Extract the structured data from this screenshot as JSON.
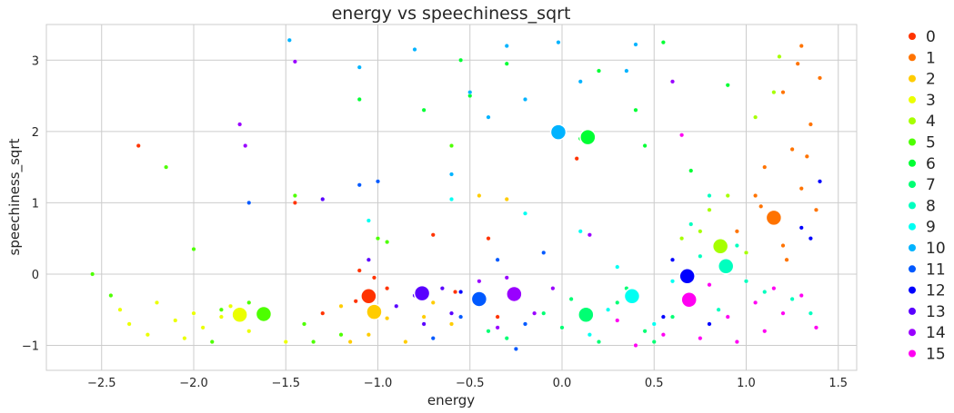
{
  "chart_data": {
    "type": "scatter",
    "title": "energy vs speechiness_sqrt",
    "xlabel": "energy",
    "ylabel": "speechiness_sqrt",
    "xlim": [
      -2.8,
      1.6
    ],
    "ylim": [
      -1.35,
      3.5
    ],
    "x_ticks": [
      -2.5,
      -2.0,
      -1.5,
      -1.0,
      -0.5,
      0.0,
      0.5,
      1.0,
      1.5
    ],
    "x_tick_labels": [
      "−2.5",
      "−2.0",
      "−1.5",
      "−1.0",
      "−0.5",
      "0.0",
      "0.5",
      "1.0",
      "1.5"
    ],
    "y_ticks": [
      -1,
      0,
      1,
      2,
      3
    ],
    "y_tick_labels": [
      "−1",
      "0",
      "1",
      "2",
      "3"
    ],
    "grid": true,
    "legend_position": "outside-right",
    "clusters": [
      {
        "name": "0",
        "color": "#ff3300",
        "center": [
          -1.05,
          -0.31
        ]
      },
      {
        "name": "1",
        "color": "#ff7300",
        "center": [
          1.15,
          0.79
        ]
      },
      {
        "name": "2",
        "color": "#ffcc00",
        "center": [
          -1.02,
          -0.53
        ]
      },
      {
        "name": "3",
        "color": "#ebff00",
        "center": [
          -1.75,
          -0.57
        ]
      },
      {
        "name": "4",
        "color": "#a6ff00",
        "center": [
          0.86,
          0.39
        ]
      },
      {
        "name": "5",
        "color": "#4dff00",
        "center": [
          -1.62,
          -0.56
        ]
      },
      {
        "name": "6",
        "color": "#00ff33",
        "center": [
          0.14,
          1.92
        ]
      },
      {
        "name": "7",
        "color": "#00ff73",
        "center": [
          0.13,
          -0.57
        ]
      },
      {
        "name": "8",
        "color": "#00ffbf",
        "center": [
          0.89,
          0.11
        ]
      },
      {
        "name": "9",
        "color": "#00fff2",
        "center": [
          0.38,
          -0.31
        ]
      },
      {
        "name": "10",
        "color": "#00b3ff",
        "center": [
          -0.02,
          1.99
        ]
      },
      {
        "name": "11",
        "color": "#0059ff",
        "center": [
          -0.45,
          -0.35
        ]
      },
      {
        "name": "12",
        "color": "#0000ff",
        "center": [
          0.68,
          -0.03
        ]
      },
      {
        "name": "13",
        "color": "#5900ff",
        "center": [
          -0.76,
          -0.27
        ]
      },
      {
        "name": "14",
        "color": "#9900ff",
        "center": [
          -0.26,
          -0.28
        ]
      },
      {
        "name": "15",
        "color": "#ff00f2",
        "center": [
          0.69,
          -0.36
        ]
      }
    ],
    "points": [
      [
        -2.3,
        1.8,
        0
      ],
      [
        -1.45,
        1.0,
        0
      ],
      [
        -1.1,
        0.05,
        0
      ],
      [
        -1.12,
        -0.38,
        0
      ],
      [
        -0.95,
        -0.2,
        0
      ],
      [
        -1.3,
        -0.55,
        0
      ],
      [
        -0.58,
        -0.25,
        0
      ],
      [
        -0.4,
        0.5,
        0
      ],
      [
        -0.7,
        0.55,
        0
      ],
      [
        0.08,
        1.62,
        0
      ],
      [
        -1.02,
        -0.05,
        0
      ],
      [
        -0.35,
        -0.6,
        0
      ],
      [
        1.3,
        1.2,
        1
      ],
      [
        1.4,
        2.75,
        1
      ],
      [
        1.2,
        2.55,
        1
      ],
      [
        1.35,
        2.1,
        1
      ],
      [
        1.05,
        1.1,
        1
      ],
      [
        0.95,
        0.6,
        1
      ],
      [
        1.25,
        1.75,
        1
      ],
      [
        1.38,
        0.9,
        1
      ],
      [
        1.1,
        1.5,
        1
      ],
      [
        1.3,
        3.2,
        1
      ],
      [
        1.0,
        0.3,
        1
      ],
      [
        1.2,
        0.4,
        1
      ],
      [
        1.28,
        2.95,
        1
      ],
      [
        1.33,
        1.65,
        1
      ],
      [
        1.08,
        0.95,
        1
      ],
      [
        1.22,
        0.2,
        1
      ],
      [
        -1.05,
        -0.85,
        2
      ],
      [
        -0.6,
        -0.7,
        2
      ],
      [
        -0.85,
        -0.95,
        2
      ],
      [
        -1.2,
        -0.45,
        2
      ],
      [
        -0.45,
        1.1,
        2
      ],
      [
        -0.3,
        1.05,
        2
      ],
      [
        -0.75,
        -0.6,
        2
      ],
      [
        -1.15,
        -0.95,
        2
      ],
      [
        -0.95,
        -0.62,
        2
      ],
      [
        -0.7,
        -0.4,
        2
      ],
      [
        -2.35,
        -0.7,
        3
      ],
      [
        -2.05,
        -0.9,
        3
      ],
      [
        -1.85,
        -0.6,
        3
      ],
      [
        -2.2,
        -0.4,
        3
      ],
      [
        -1.95,
        -0.75,
        3
      ],
      [
        -2.4,
        -0.5,
        3
      ],
      [
        -1.8,
        -0.45,
        3
      ],
      [
        -2.1,
        -0.65,
        3
      ],
      [
        -1.7,
        -0.8,
        3
      ],
      [
        -2.0,
        -0.55,
        3
      ],
      [
        -1.5,
        -0.95,
        3
      ],
      [
        -2.25,
        -0.85,
        3
      ],
      [
        0.8,
        0.9,
        4
      ],
      [
        1.15,
        2.55,
        4
      ],
      [
        1.05,
        2.2,
        4
      ],
      [
        0.65,
        0.5,
        4
      ],
      [
        1.0,
        0.3,
        4
      ],
      [
        0.9,
        1.1,
        4
      ],
      [
        0.75,
        0.6,
        4
      ],
      [
        1.18,
        3.05,
        4
      ],
      [
        -2.55,
        0.0,
        5
      ],
      [
        -1.9,
        -0.95,
        5
      ],
      [
        -1.7,
        -0.4,
        5
      ],
      [
        -1.4,
        -0.7,
        5
      ],
      [
        -2.0,
        0.35,
        5
      ],
      [
        -2.15,
        1.5,
        5
      ],
      [
        -1.45,
        1.1,
        5
      ],
      [
        -1.35,
        -0.95,
        5
      ],
      [
        -1.6,
        -0.6,
        5
      ],
      [
        -1.2,
        -0.85,
        5
      ],
      [
        -1.85,
        -0.5,
        5
      ],
      [
        -2.45,
        -0.3,
        5
      ],
      [
        -0.95,
        0.45,
        5
      ],
      [
        -0.6,
        1.8,
        5
      ],
      [
        -1.0,
        0.5,
        5
      ],
      [
        0.1,
        1.9,
        6
      ],
      [
        0.55,
        3.25,
        6
      ],
      [
        -0.3,
        2.95,
        6
      ],
      [
        -1.1,
        2.45,
        6
      ],
      [
        0.9,
        2.65,
        6
      ],
      [
        0.45,
        1.8,
        6
      ],
      [
        -0.5,
        2.5,
        6
      ],
      [
        -0.75,
        2.3,
        6
      ],
      [
        0.2,
        2.85,
        6
      ],
      [
        -0.55,
        3.0,
        6
      ],
      [
        0.7,
        1.45,
        6
      ],
      [
        0.4,
        2.3,
        6
      ],
      [
        0.3,
        -0.4,
        7
      ],
      [
        -0.1,
        -0.55,
        7
      ],
      [
        0.2,
        -0.95,
        7
      ],
      [
        0.45,
        -0.8,
        7
      ],
      [
        -0.3,
        -0.9,
        7
      ],
      [
        0.6,
        -0.6,
        7
      ],
      [
        0.0,
        -0.75,
        7
      ],
      [
        0.35,
        -0.2,
        7
      ],
      [
        0.15,
        -0.6,
        7
      ],
      [
        -0.4,
        -0.8,
        7
      ],
      [
        0.5,
        -0.95,
        7
      ],
      [
        0.05,
        -0.35,
        7
      ],
      [
        0.9,
        0.15,
        8
      ],
      [
        0.7,
        0.7,
        8
      ],
      [
        1.0,
        -0.1,
        8
      ],
      [
        0.8,
        1.1,
        8
      ],
      [
        0.95,
        0.4,
        8
      ],
      [
        1.1,
        -0.25,
        8
      ],
      [
        0.85,
        -0.5,
        8
      ],
      [
        1.25,
        -0.35,
        8
      ],
      [
        1.35,
        -0.55,
        8
      ],
      [
        0.75,
        0.25,
        8
      ],
      [
        0.4,
        -0.3,
        9
      ],
      [
        0.25,
        -0.5,
        9
      ],
      [
        0.6,
        -0.1,
        9
      ],
      [
        0.3,
        0.1,
        9
      ],
      [
        0.15,
        -0.85,
        9
      ],
      [
        0.5,
        -0.7,
        9
      ],
      [
        -0.2,
        0.85,
        9
      ],
      [
        0.1,
        0.6,
        9
      ],
      [
        -1.05,
        0.75,
        9
      ],
      [
        -0.6,
        1.05,
        9
      ],
      [
        -1.48,
        3.28,
        10
      ],
      [
        -0.3,
        3.2,
        10
      ],
      [
        0.4,
        3.22,
        10
      ],
      [
        -0.5,
        2.55,
        10
      ],
      [
        -1.1,
        2.9,
        10
      ],
      [
        0.1,
        2.7,
        10
      ],
      [
        -0.2,
        2.45,
        10
      ],
      [
        -0.8,
        3.15,
        10
      ],
      [
        0.35,
        2.85,
        10
      ],
      [
        -0.02,
        3.25,
        10
      ],
      [
        -0.4,
        2.2,
        10
      ],
      [
        -0.6,
        1.4,
        10
      ],
      [
        -0.45,
        -0.35,
        11
      ],
      [
        -1.1,
        1.25,
        11
      ],
      [
        -1.0,
        1.3,
        11
      ],
      [
        -0.2,
        -0.7,
        11
      ],
      [
        -0.7,
        -0.9,
        11
      ],
      [
        -1.7,
        1.0,
        11
      ],
      [
        -0.35,
        0.2,
        11
      ],
      [
        -0.55,
        -0.6,
        11
      ],
      [
        -0.1,
        0.3,
        11
      ],
      [
        -0.25,
        -1.05,
        11
      ],
      [
        0.68,
        -0.03,
        12
      ],
      [
        1.35,
        0.5,
        12
      ],
      [
        1.4,
        1.3,
        12
      ],
      [
        0.6,
        0.2,
        12
      ],
      [
        1.3,
        0.65,
        12
      ],
      [
        0.55,
        -0.6,
        12
      ],
      [
        -0.55,
        -0.25,
        12
      ],
      [
        0.8,
        -0.7,
        12
      ],
      [
        -0.8,
        -0.3,
        13
      ],
      [
        -0.65,
        -0.2,
        13
      ],
      [
        -0.9,
        -0.45,
        13
      ],
      [
        -1.3,
        1.05,
        13
      ],
      [
        -0.6,
        -0.55,
        13
      ],
      [
        -1.05,
        0.2,
        13
      ],
      [
        -0.75,
        -0.7,
        13
      ],
      [
        -1.75,
        2.1,
        14
      ],
      [
        -1.72,
        1.8,
        14
      ],
      [
        -1.45,
        2.98,
        14
      ],
      [
        -0.25,
        -0.3,
        14
      ],
      [
        -0.15,
        -0.55,
        14
      ],
      [
        -0.35,
        -0.75,
        14
      ],
      [
        0.15,
        0.55,
        14
      ],
      [
        0.6,
        2.7,
        14
      ],
      [
        -0.45,
        -0.1,
        14
      ],
      [
        -0.05,
        -0.2,
        14
      ],
      [
        -0.3,
        -0.05,
        14
      ],
      [
        0.7,
        -0.35,
        15
      ],
      [
        0.9,
        -0.6,
        15
      ],
      [
        1.1,
        -0.8,
        15
      ],
      [
        0.55,
        -0.85,
        15
      ],
      [
        1.2,
        -0.55,
        15
      ],
      [
        0.8,
        -0.15,
        15
      ],
      [
        1.3,
        -0.3,
        15
      ],
      [
        0.4,
        -1.0,
        15
      ],
      [
        1.05,
        -0.4,
        15
      ],
      [
        0.65,
        1.95,
        15
      ],
      [
        0.95,
        -0.95,
        15
      ],
      [
        1.38,
        -0.75,
        15
      ],
      [
        0.3,
        -0.65,
        15
      ],
      [
        1.15,
        -0.2,
        15
      ],
      [
        0.75,
        -0.9,
        15
      ]
    ]
  }
}
